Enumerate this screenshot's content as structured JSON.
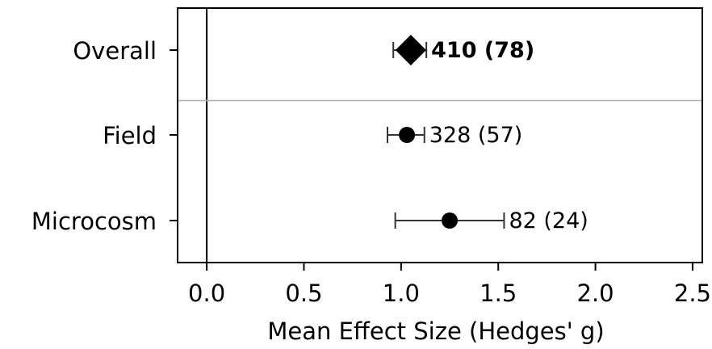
{
  "chart_data": {
    "type": "scatter",
    "subtype": "forest-plot",
    "title": "",
    "xlabel": "Mean Effect Size (Hedges' g)",
    "ylabel": "",
    "xlim": [
      -0.15,
      2.55
    ],
    "xticks": [
      0.0,
      0.5,
      1.0,
      1.5,
      2.0,
      2.5
    ],
    "xtick_labels": [
      "0.0",
      "0.5",
      "1.0",
      "1.5",
      "2.0",
      "2.5"
    ],
    "reference_line_x": 0,
    "separator_between": [
      "Overall",
      "Field"
    ],
    "grid": false,
    "legend": "none",
    "rows": [
      {
        "category": "Overall",
        "mean": 1.05,
        "ci_low": 0.96,
        "ci_high": 1.13,
        "label": "410 (78)",
        "marker": "diamond",
        "label_bold": true
      },
      {
        "category": "Field",
        "mean": 1.03,
        "ci_low": 0.93,
        "ci_high": 1.12,
        "label": "328 (57)",
        "marker": "circle",
        "label_bold": false
      },
      {
        "category": "Microcosm",
        "mean": 1.25,
        "ci_low": 0.97,
        "ci_high": 1.53,
        "label": "82 (24)",
        "marker": "circle",
        "label_bold": false
      }
    ],
    "colors": {
      "marker": "#000000",
      "errorbar": "#333333",
      "separator": "#b0b0b0"
    }
  }
}
